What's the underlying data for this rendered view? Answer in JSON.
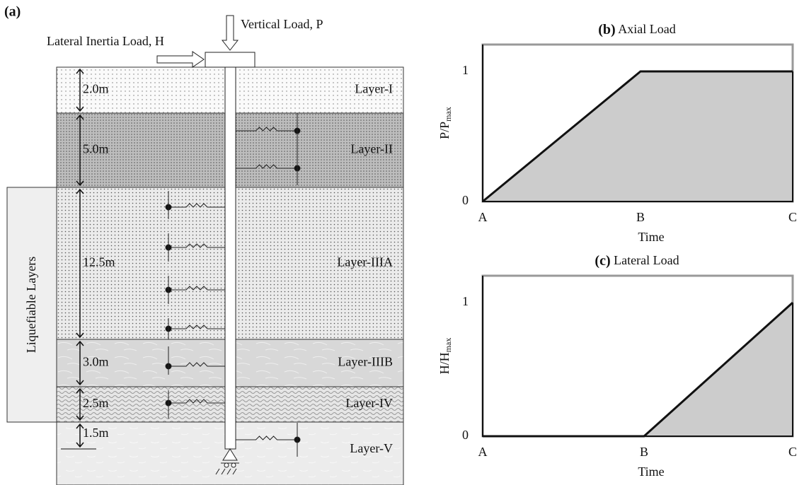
{
  "panel_a": {
    "label": "(a)",
    "vertical_load": "Vertical Load, P",
    "lateral_load": "Lateral Inertia Load, H",
    "liquefiable": "Liquefiable Layers",
    "layers": [
      {
        "name": "Layer-I",
        "thickness": "2.0m"
      },
      {
        "name": "Layer-II",
        "thickness": "5.0m"
      },
      {
        "name": "Layer-IIIA",
        "thickness": "12.5m"
      },
      {
        "name": "Layer-IIIB",
        "thickness": "3.0m"
      },
      {
        "name": "Layer-IV",
        "thickness": "2.5m"
      },
      {
        "name": "Layer-V",
        "thickness": "1.5m"
      }
    ]
  },
  "panel_b": {
    "label": "(b)",
    "title": "Axial Load",
    "ylabel": "P/P",
    "ylabel_sub": "max",
    "xlabel": "Time",
    "categories": [
      "A",
      "B",
      "C"
    ],
    "values": [
      0,
      1,
      1
    ],
    "yticks": [
      0,
      1
    ]
  },
  "panel_c": {
    "label": "(c)",
    "title": "Lateral Load",
    "ylabel": "H/H",
    "ylabel_sub": "max",
    "xlabel": "Time",
    "categories": [
      "A",
      "B",
      "C"
    ],
    "values": [
      0,
      0,
      1
    ],
    "yticks": [
      0,
      1
    ]
  }
}
